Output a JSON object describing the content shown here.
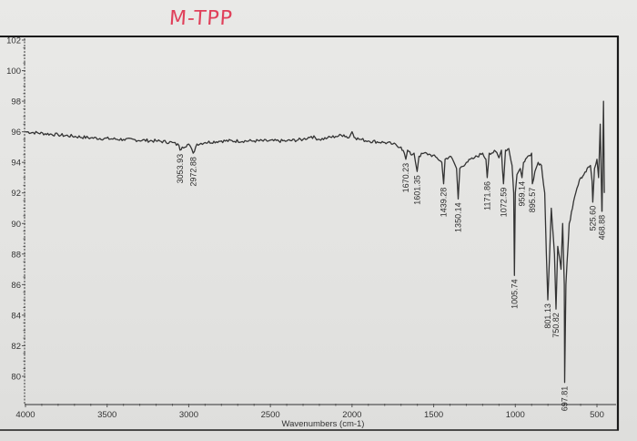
{
  "header": {
    "handwritten_title": "M-TPP"
  },
  "chart_data": {
    "type": "line",
    "title": "M-TPP",
    "xlabel": "Wavenumbers (cm-1)",
    "ylabel": "",
    "xlim": [
      4000,
      450
    ],
    "ylim": [
      78.5,
      102
    ],
    "x_reversed": true,
    "grid": false,
    "legend": null,
    "x_ticks": [
      4000,
      3500,
      3000,
      2500,
      2000,
      1500,
      1000,
      500
    ],
    "y_ticks": [
      80,
      82,
      84,
      86,
      88,
      90,
      92,
      94,
      96,
      98,
      100,
      102
    ],
    "peaks": [
      {
        "x": 3053.93,
        "label": "3053.93",
        "y": 94.8
      },
      {
        "x": 2972.88,
        "label": "2972.88",
        "y": 94.6
      },
      {
        "x": 1670.23,
        "label": "1670.23",
        "y": 94.2
      },
      {
        "x": 1601.35,
        "label": "1601.35",
        "y": 93.4
      },
      {
        "x": 1439.28,
        "label": "1439.28",
        "y": 92.6
      },
      {
        "x": 1350.14,
        "label": "1350.14",
        "y": 91.6
      },
      {
        "x": 1171.86,
        "label": "1171.86",
        "y": 93.0
      },
      {
        "x": 1072.59,
        "label": "1072.59",
        "y": 92.6
      },
      {
        "x": 1005.74,
        "label": "1005.74",
        "y": 86.6
      },
      {
        "x": 959.14,
        "label": "959.14",
        "y": 93.0
      },
      {
        "x": 895.57,
        "label": "895.57",
        "y": 92.6
      },
      {
        "x": 801.13,
        "label": "801.13",
        "y": 85.0
      },
      {
        "x": 750.82,
        "label": "750.82",
        "y": 84.4
      },
      {
        "x": 697.81,
        "label": "697.81",
        "y": 79.6
      },
      {
        "x": 525.6,
        "label": "525.60",
        "y": 91.4
      },
      {
        "x": 468.88,
        "label": "468.88",
        "y": 90.8
      }
    ],
    "series": [
      {
        "name": "M-TPP",
        "x": [
          4000,
          3800,
          3600,
          3400,
          3200,
          3100,
          3060,
          3053.9,
          3040,
          3000,
          2972.9,
          2950,
          2900,
          2800,
          2600,
          2400,
          2300,
          2250,
          2200,
          2150,
          2100,
          2050,
          2020,
          2000,
          1980,
          1950,
          1900,
          1800,
          1750,
          1700,
          1680,
          1670.2,
          1660,
          1640,
          1620,
          1601.4,
          1590,
          1560,
          1520,
          1480,
          1450,
          1439.3,
          1430,
          1400,
          1380,
          1360,
          1350.1,
          1340,
          1300,
          1250,
          1200,
          1180,
          1171.9,
          1160,
          1120,
          1100,
          1085,
          1072.6,
          1060,
          1040,
          1020,
          1010,
          1005.7,
          1000,
          990,
          970,
          959.1,
          950,
          930,
          900,
          895.6,
          880,
          860,
          840,
          820,
          810,
          801.1,
          790,
          780,
          760,
          750.8,
          740,
          720,
          710,
          700,
          697.8,
          690,
          670,
          650,
          630,
          600,
          580,
          560,
          540,
          530,
          525.6,
          515,
          500,
          490,
          480,
          470,
          468.9,
          460,
          455
        ],
        "values": [
          96.0,
          95.8,
          95.6,
          95.5,
          95.4,
          95.3,
          95.1,
          94.8,
          95.0,
          95.2,
          94.6,
          95.2,
          95.3,
          95.4,
          95.4,
          95.4,
          95.5,
          95.7,
          95.5,
          95.6,
          95.7,
          95.8,
          95.6,
          96.0,
          95.6,
          95.5,
          95.4,
          95.3,
          95.2,
          95.0,
          94.6,
          94.2,
          94.8,
          94.5,
          94.6,
          93.4,
          94.4,
          94.6,
          94.5,
          94.3,
          94.0,
          92.6,
          94.2,
          94.4,
          94.1,
          93.6,
          91.6,
          93.6,
          94.0,
          94.3,
          94.6,
          94.2,
          93.0,
          94.6,
          94.7,
          94.3,
          94.8,
          92.6,
          94.8,
          94.9,
          93.8,
          92.0,
          86.6,
          92.0,
          93.2,
          93.6,
          93.0,
          94.0,
          94.3,
          94.6,
          92.6,
          93.4,
          94.0,
          93.8,
          92.0,
          88.0,
          85.0,
          88.0,
          91.0,
          88.0,
          84.4,
          88.5,
          87.0,
          90.0,
          86.0,
          79.6,
          86.0,
          90.0,
          91.0,
          92.0,
          93.0,
          93.2,
          93.6,
          93.8,
          92.8,
          91.4,
          93.6,
          94.2,
          93.0,
          96.5,
          90.8,
          90.8,
          98.0,
          92.0
        ]
      }
    ]
  }
}
